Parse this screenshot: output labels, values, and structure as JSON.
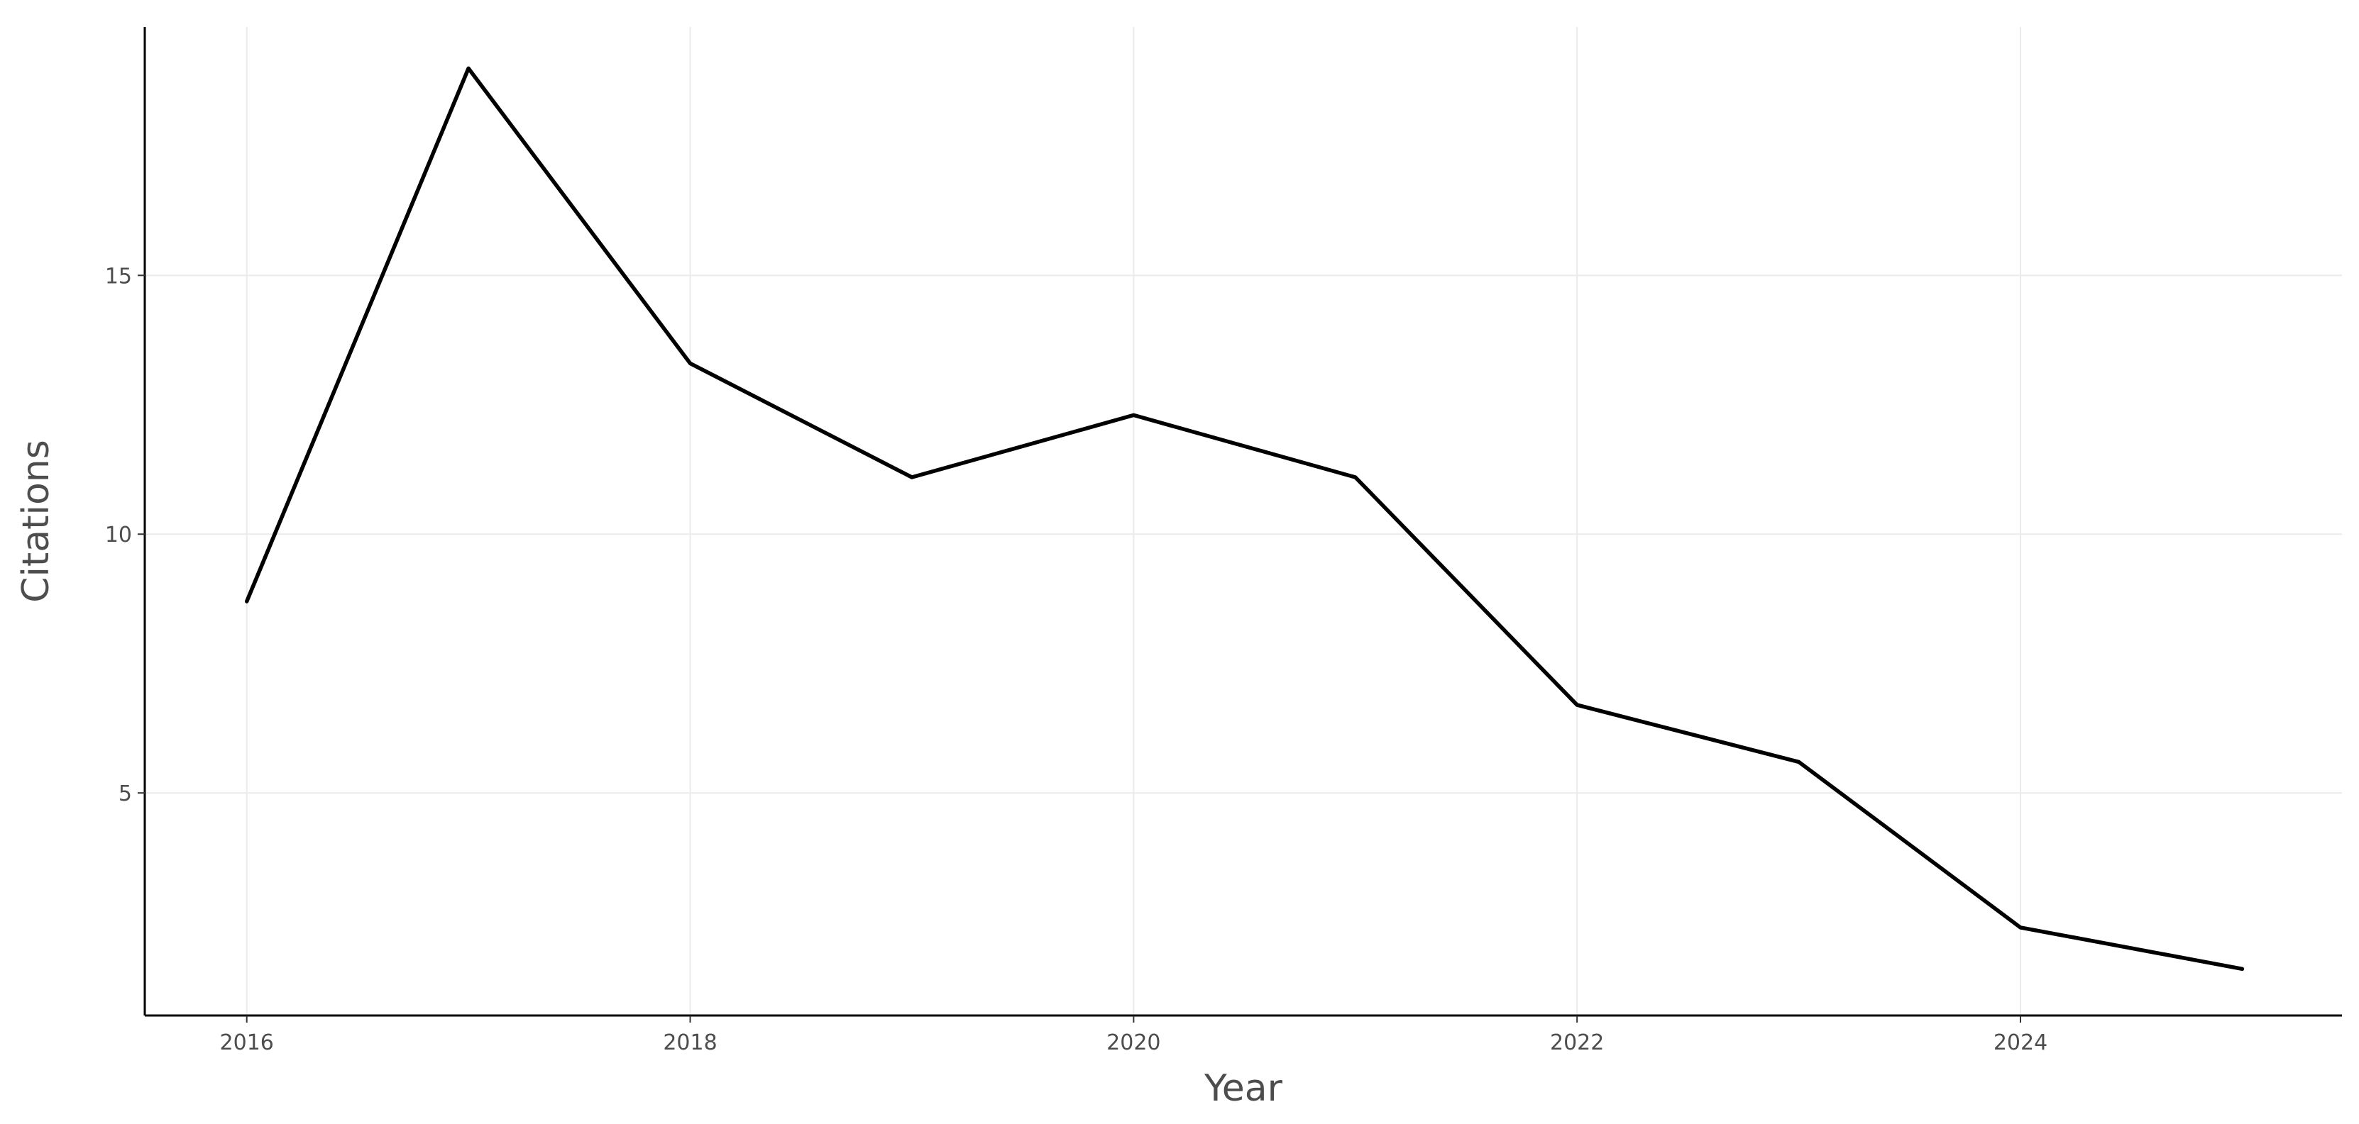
{
  "chart_data": {
    "type": "line",
    "title": "",
    "xlabel": "Year",
    "ylabel": "Citations",
    "xlim": [
      2015.54,
      2025.45
    ],
    "ylim": [
      0.7,
      19.8
    ],
    "x_ticks": [
      2016,
      2018,
      2020,
      2022,
      2024
    ],
    "x_tick_labels": [
      "2016",
      "2018",
      "2020",
      "2022",
      "2024"
    ],
    "y_ticks": [
      5,
      10,
      15
    ],
    "y_tick_labels": [
      "5",
      "10",
      "15"
    ],
    "grid": true,
    "legend": "none",
    "series": [
      {
        "color": "#000000",
        "x": [
          2016,
          2017,
          2018,
          2019,
          2020,
          2021,
          2022,
          2023,
          2024,
          2025
        ],
        "y": [
          8.7,
          19.0,
          13.3,
          11.1,
          12.3,
          11.1,
          6.7,
          5.6,
          2.4,
          1.6
        ]
      }
    ]
  }
}
